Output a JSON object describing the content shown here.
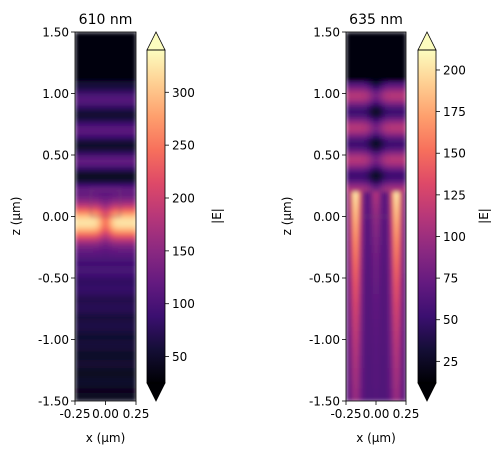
{
  "chart_data": [
    {
      "type": "heatmap",
      "title": "610 nm",
      "xlabel": "x (μm)",
      "ylabel": "z (μm)",
      "xlim": [
        -0.25,
        0.25
      ],
      "ylim": [
        -1.5,
        1.5
      ],
      "xticks": [
        -0.25,
        0.0,
        0.25
      ],
      "xtick_labels": [
        "-0.25",
        "0.00",
        "0.25"
      ],
      "yticks": [
        -1.5,
        -1.0,
        -0.5,
        0.0,
        0.5,
        1.0,
        1.5
      ],
      "ytick_labels": [
        "-1.50",
        "-1.00",
        "-0.50",
        "0.00",
        "0.50",
        "1.00",
        "1.50"
      ],
      "colormap": "magma",
      "colorbar": {
        "label": "|E|",
        "range": [
          25,
          340
        ],
        "ticks": [
          50,
          100,
          150,
          200,
          250,
          300
        ],
        "tick_labels": [
          "50",
          "100",
          "150",
          "200",
          "250",
          "300"
        ],
        "extend": "both"
      }
    },
    {
      "type": "heatmap",
      "title": "635 nm",
      "xlabel": "x (μm)",
      "ylabel": "z (μm)",
      "xlim": [
        -0.25,
        0.25
      ],
      "ylim": [
        -1.5,
        1.5
      ],
      "xticks": [
        -0.25,
        0.0,
        0.25
      ],
      "xtick_labels": [
        "-0.25",
        "0.00",
        "0.25"
      ],
      "yticks": [
        -1.5,
        -1.0,
        -0.5,
        0.0,
        0.5,
        1.0,
        1.5
      ],
      "ytick_labels": [
        "-1.50",
        "-1.00",
        "-0.50",
        "0.00",
        "0.50",
        "1.00",
        "1.50"
      ],
      "colormap": "magma",
      "colorbar": {
        "label": "|E|",
        "range": [
          12,
          212
        ],
        "ticks": [
          25,
          50,
          75,
          100,
          125,
          150,
          175,
          200
        ],
        "tick_labels": [
          "25",
          "50",
          "75",
          "100",
          "125",
          "150",
          "175",
          "200"
        ],
        "extend": "both"
      }
    }
  ]
}
